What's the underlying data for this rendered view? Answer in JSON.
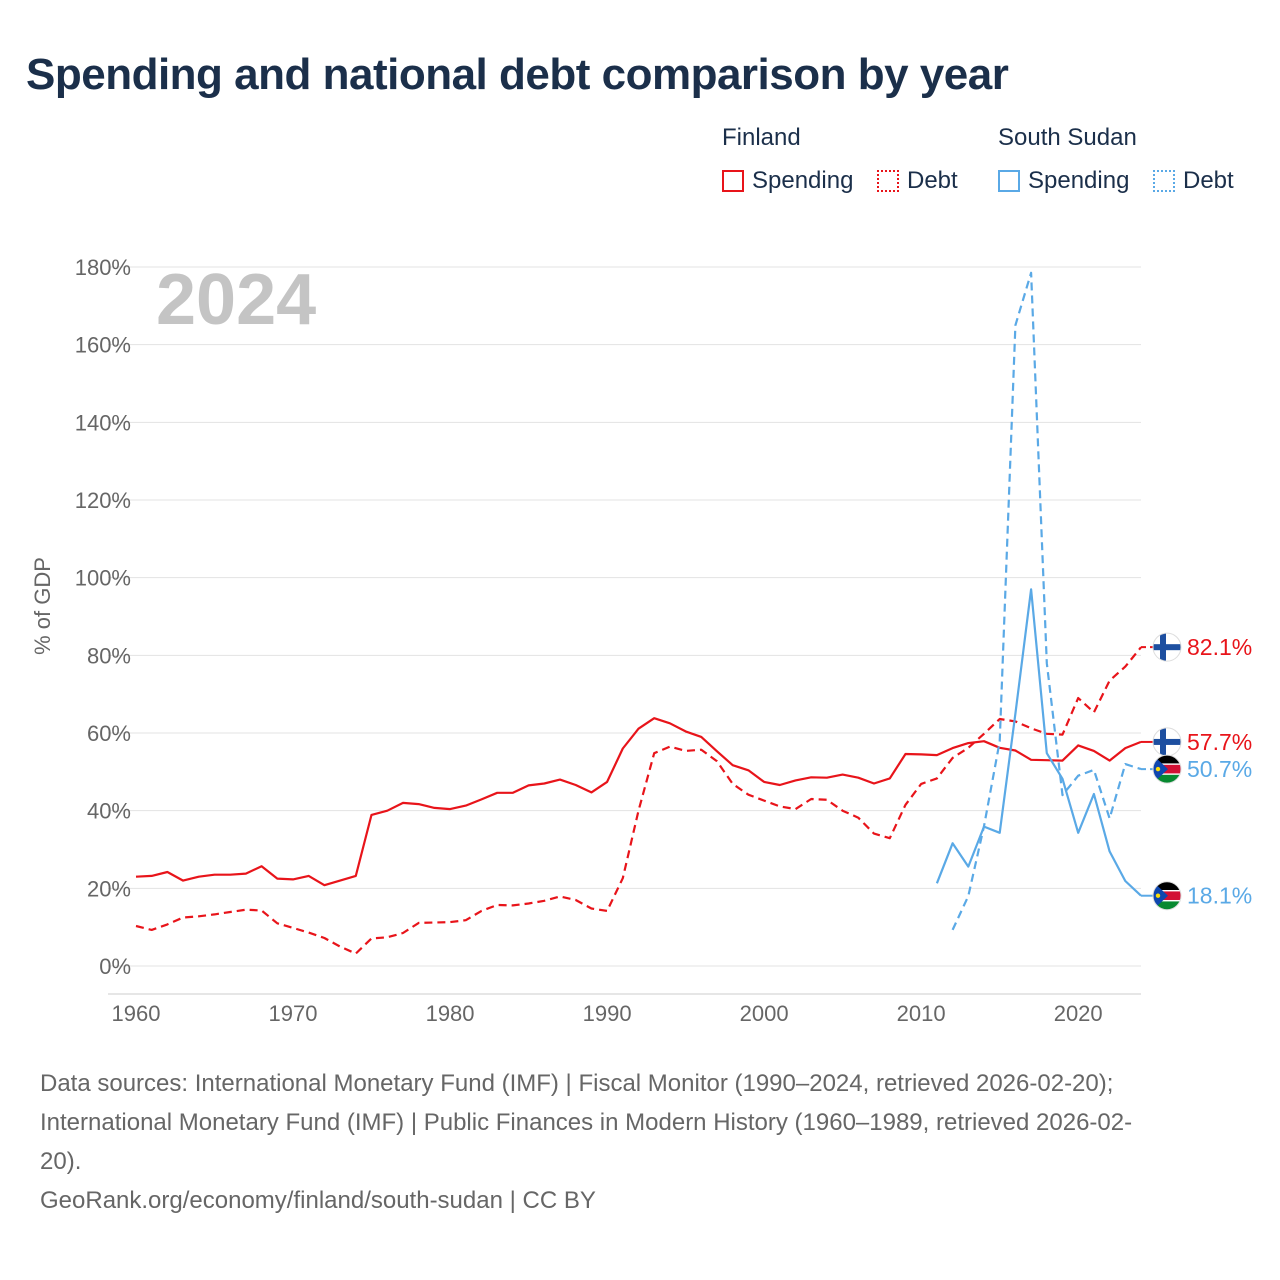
{
  "title": "Spending and national debt comparison by year",
  "legend": {
    "groups": [
      {
        "country": "Finland",
        "color": "#e8141a",
        "items": [
          {
            "label": "Spending",
            "style": "solid"
          },
          {
            "label": "Debt",
            "style": "dotted"
          }
        ]
      },
      {
        "country": "South Sudan",
        "color": "#5aa9e6",
        "items": [
          {
            "label": "Spending",
            "style": "solid"
          },
          {
            "label": "Debt",
            "style": "dotted"
          }
        ]
      }
    ]
  },
  "year_watermark": "2024",
  "y_axis_label": "% of GDP",
  "end_labels": [
    {
      "text": "82.1%",
      "series": "Finland Debt",
      "flag": "finland"
    },
    {
      "text": "57.7%",
      "series": "Finland Spending",
      "flag": "finland"
    },
    {
      "text": "50.7%",
      "series": "South Sudan Debt",
      "flag": "south-sudan"
    },
    {
      "text": "18.1%",
      "series": "South Sudan Spending",
      "flag": "south-sudan"
    }
  ],
  "sources": [
    "Data sources: International Monetary Fund (IMF) | Fiscal Monitor (1990–2024, retrieved 2026-02-20);",
    "International Monetary Fund (IMF) | Public Finances in Modern History (1960–1989, retrieved 2026-02-",
    "20).",
    "GeoRank.org/economy/finland/south-sudan | CC BY"
  ],
  "chart_data": {
    "type": "line",
    "title": "Spending and national debt comparison by year",
    "xlabel": "",
    "ylabel": "% of GDP",
    "xlim": [
      1960,
      2024
    ],
    "ylim": [
      0,
      180
    ],
    "x_ticks": [
      1960,
      1970,
      1980,
      1990,
      2000,
      2010,
      2020
    ],
    "y_ticks": [
      0,
      20,
      40,
      60,
      80,
      100,
      120,
      140,
      160,
      180
    ],
    "y_tick_labels": [
      "0%",
      "20%",
      "40%",
      "60%",
      "80%",
      "100%",
      "120%",
      "140%",
      "160%",
      "180%"
    ],
    "grid": true,
    "series": [
      {
        "name": "Finland Spending",
        "color": "#e8141a",
        "dash": "solid",
        "x": [
          1960,
          1961,
          1962,
          1963,
          1964,
          1965,
          1966,
          1967,
          1968,
          1969,
          1970,
          1971,
          1972,
          1973,
          1974,
          1975,
          1976,
          1977,
          1978,
          1979,
          1980,
          1981,
          1982,
          1983,
          1984,
          1985,
          1986,
          1987,
          1988,
          1989,
          1990,
          1991,
          1992,
          1993,
          1994,
          1995,
          1996,
          1997,
          1998,
          1999,
          2000,
          2001,
          2002,
          2003,
          2004,
          2005,
          2006,
          2007,
          2008,
          2009,
          2010,
          2011,
          2012,
          2013,
          2014,
          2015,
          2016,
          2017,
          2018,
          2019,
          2020,
          2021,
          2022,
          2023,
          2024
        ],
        "values": [
          23.0,
          23.2,
          24.2,
          22.0,
          23.0,
          23.5,
          23.5,
          23.8,
          25.7,
          22.5,
          22.3,
          23.2,
          20.8,
          22.0,
          23.2,
          38.9,
          40.0,
          42.0,
          41.7,
          40.7,
          40.4,
          41.3,
          42.9,
          44.6,
          44.6,
          46.5,
          47.0,
          48.0,
          46.6,
          44.7,
          47.4,
          56.0,
          61.1,
          63.8,
          62.5,
          60.4,
          59.0,
          55.3,
          51.7,
          50.4,
          47.4,
          46.6,
          47.8,
          48.6,
          48.5,
          49.3,
          48.5,
          47.0,
          48.3,
          54.6,
          54.5,
          54.3,
          56.1,
          57.4,
          57.9,
          56.2,
          55.5,
          53.1,
          53.0,
          52.9,
          56.8,
          55.4,
          52.9,
          56.1,
          57.7
        ]
      },
      {
        "name": "Finland Debt",
        "color": "#e8141a",
        "dash": "dashed",
        "x": [
          1960,
          1961,
          1962,
          1963,
          1964,
          1965,
          1966,
          1967,
          1968,
          1969,
          1970,
          1971,
          1972,
          1973,
          1974,
          1975,
          1976,
          1977,
          1978,
          1979,
          1980,
          1981,
          1982,
          1983,
          1984,
          1985,
          1986,
          1987,
          1988,
          1989,
          1990,
          1991,
          1992,
          1993,
          1994,
          1995,
          1996,
          1997,
          1998,
          1999,
          2000,
          2001,
          2002,
          2003,
          2004,
          2005,
          2006,
          2007,
          2008,
          2009,
          2010,
          2011,
          2012,
          2013,
          2014,
          2015,
          2016,
          2017,
          2018,
          2019,
          2020,
          2021,
          2022,
          2023,
          2024
        ],
        "values": [
          10.3,
          9.3,
          10.7,
          12.5,
          12.8,
          13.3,
          13.9,
          14.5,
          14.3,
          11.0,
          9.8,
          8.6,
          7.2,
          5.0,
          3.2,
          7.1,
          7.4,
          8.5,
          11.1,
          11.2,
          11.3,
          11.8,
          14.2,
          15.7,
          15.6,
          16.1,
          16.8,
          17.9,
          17.0,
          14.8,
          14.2,
          22.6,
          40.0,
          54.8,
          56.5,
          55.4,
          55.7,
          52.7,
          46.9,
          44.1,
          42.6,
          41.1,
          40.4,
          43.0,
          42.8,
          40.0,
          38.2,
          34.1,
          32.9,
          41.5,
          46.9,
          48.3,
          53.6,
          56.2,
          59.8,
          63.6,
          63.0,
          61.2,
          59.8,
          59.6,
          69.0,
          65.3,
          73.5,
          77.1,
          82.1
        ]
      },
      {
        "name": "South Sudan Spending",
        "color": "#5aa9e6",
        "dash": "solid",
        "x": [
          2011,
          2012,
          2013,
          2014,
          2015,
          2016,
          2017,
          2018,
          2019,
          2020,
          2021,
          2022,
          2023,
          2024
        ],
        "values": [
          21.3,
          31.6,
          25.6,
          35.9,
          34.3,
          65.0,
          97.0,
          54.8,
          48.2,
          34.3,
          44.3,
          29.5,
          21.9,
          18.1
        ]
      },
      {
        "name": "South Sudan Debt",
        "color": "#5aa9e6",
        "dash": "dashed",
        "x": [
          2012,
          2013,
          2014,
          2015,
          2016,
          2017,
          2018,
          2019,
          2020,
          2021,
          2022,
          2023,
          2024
        ],
        "values": [
          9.3,
          18.0,
          36.0,
          57.8,
          165.0,
          178.5,
          78.0,
          44.0,
          49.0,
          50.5,
          38.0,
          52.0,
          50.7
        ]
      }
    ]
  }
}
